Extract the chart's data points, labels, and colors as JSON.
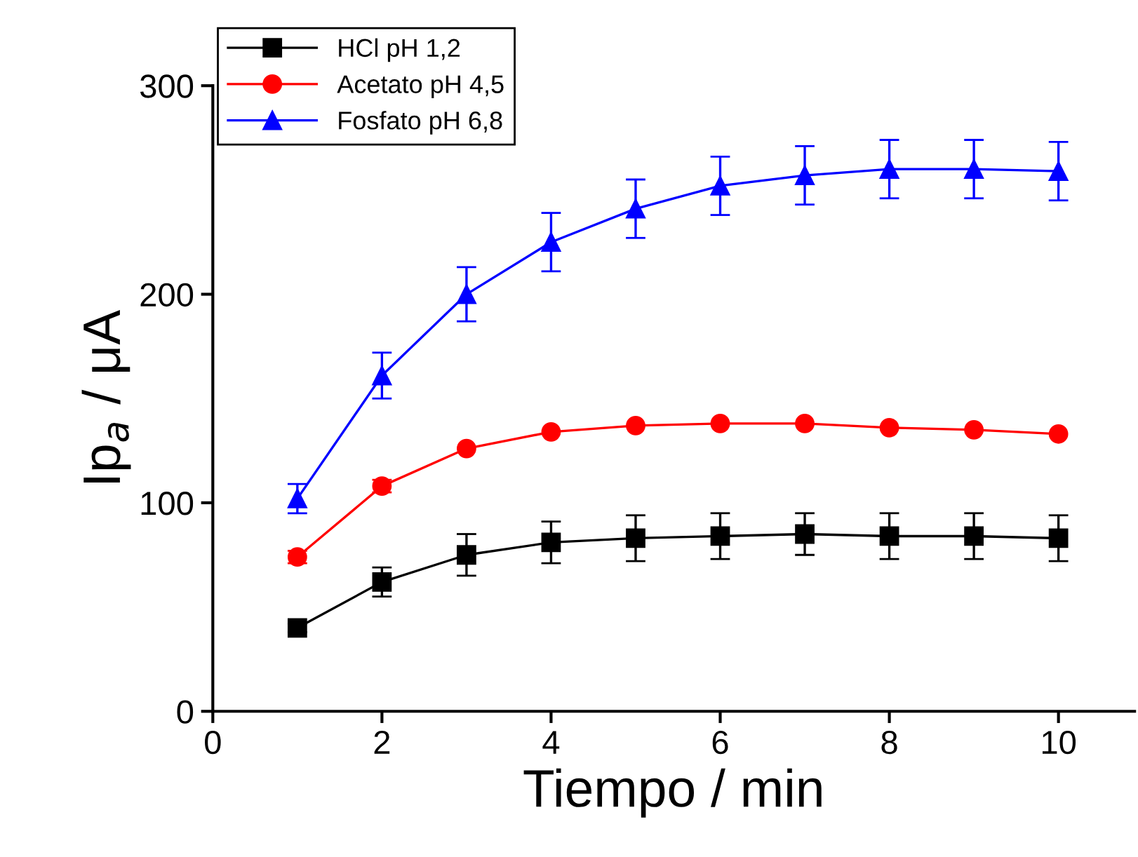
{
  "chart_data": {
    "type": "line",
    "xlabel": "Tiempo / min",
    "ylabel": "Ip$_{a}$ / μA",
    "x": [
      1,
      2,
      3,
      4,
      5,
      6,
      7,
      8,
      9,
      10
    ],
    "series": [
      {
        "name": "HCl pH 1,2",
        "color": "#000000",
        "marker": "square",
        "values": [
          40,
          62,
          75,
          81,
          83,
          84,
          85,
          84,
          84,
          83
        ],
        "errors": [
          2,
          7,
          10,
          10,
          11,
          11,
          10,
          11,
          11,
          11
        ]
      },
      {
        "name": "Acetato pH 4,5",
        "color": "#ff0000",
        "marker": "circle",
        "values": [
          74,
          108,
          126,
          134,
          137,
          138,
          138,
          136,
          135,
          133
        ],
        "errors": [
          3,
          3,
          null,
          null,
          null,
          null,
          null,
          null,
          null,
          null
        ]
      },
      {
        "name": "Fosfato pH 6,8",
        "color": "#0000ff",
        "marker": "triangle",
        "values": [
          102,
          161,
          200,
          225,
          241,
          252,
          257,
          260,
          260,
          259
        ],
        "errors": [
          7,
          11,
          13,
          14,
          14,
          14,
          14,
          14,
          14,
          14
        ]
      }
    ],
    "xlim": [
      0,
      10.9
    ],
    "xticks": [
      0,
      2,
      4,
      6,
      8,
      10
    ],
    "ylim": [
      0,
      300
    ],
    "yticks": [
      0,
      100,
      200,
      300
    ],
    "grid": false,
    "legend": "top left"
  }
}
